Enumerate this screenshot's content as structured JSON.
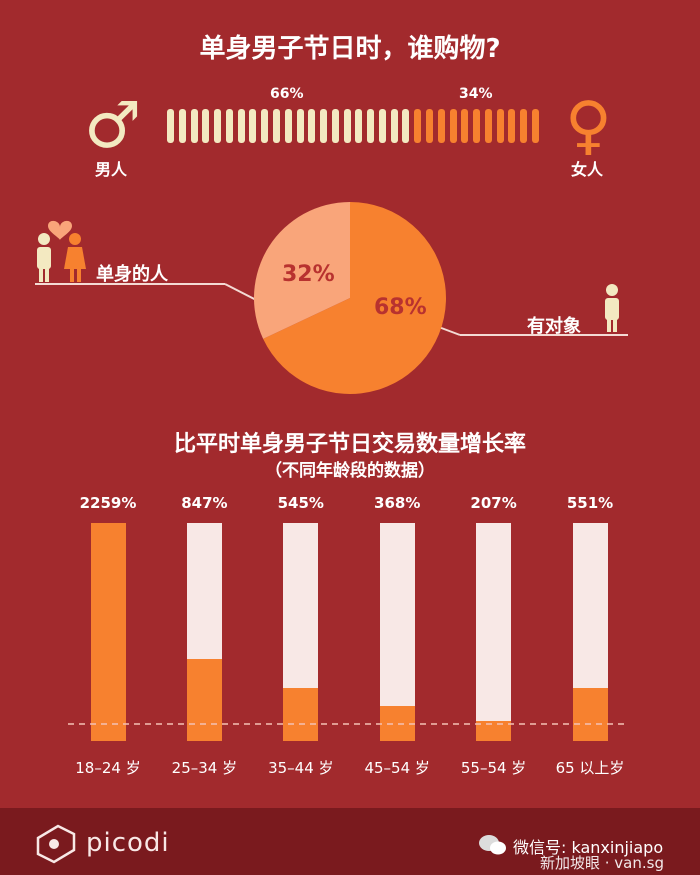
{
  "title": "单身男子节日时，谁购物?",
  "gender_split": {
    "male_pct": "66%",
    "female_pct": "34%",
    "male_label": "男人",
    "female_label": "女人",
    "male_fraction": 0.66,
    "male_color": "#f3e9c1",
    "female_color": "#f7812f"
  },
  "relationship": {
    "single_label": "单身的人",
    "taken_label": "有对象",
    "single_pct_text": "32%",
    "taken_pct_text": "68%",
    "single_color": "#f9a57a",
    "taken_color": "#f7812f"
  },
  "chart_title": "比平时单身男子节日交易数量增长率",
  "chart_subtitle": "（不同年龄段的数据）",
  "chart_data": {
    "type": "bar",
    "title": "比平时单身男子节日交易数量增长率",
    "subtitle": "（不同年龄段的数据）",
    "categories": [
      "18–24 岁",
      "25–34 岁",
      "35–44 岁",
      "45–54 岁",
      "55–54 岁",
      "65 以上岁"
    ],
    "values": [
      2259,
      847,
      545,
      368,
      207,
      551
    ],
    "value_labels": [
      "2259%",
      "847%",
      "545%",
      "368%",
      "207%",
      "551%"
    ],
    "ylim": [
      0,
      2259
    ],
    "grid": false
  },
  "footer": {
    "brand": "picodi",
    "wechat": "微信号: kanxinjiapo",
    "watermark": "新加坡眼 · van.sg"
  }
}
